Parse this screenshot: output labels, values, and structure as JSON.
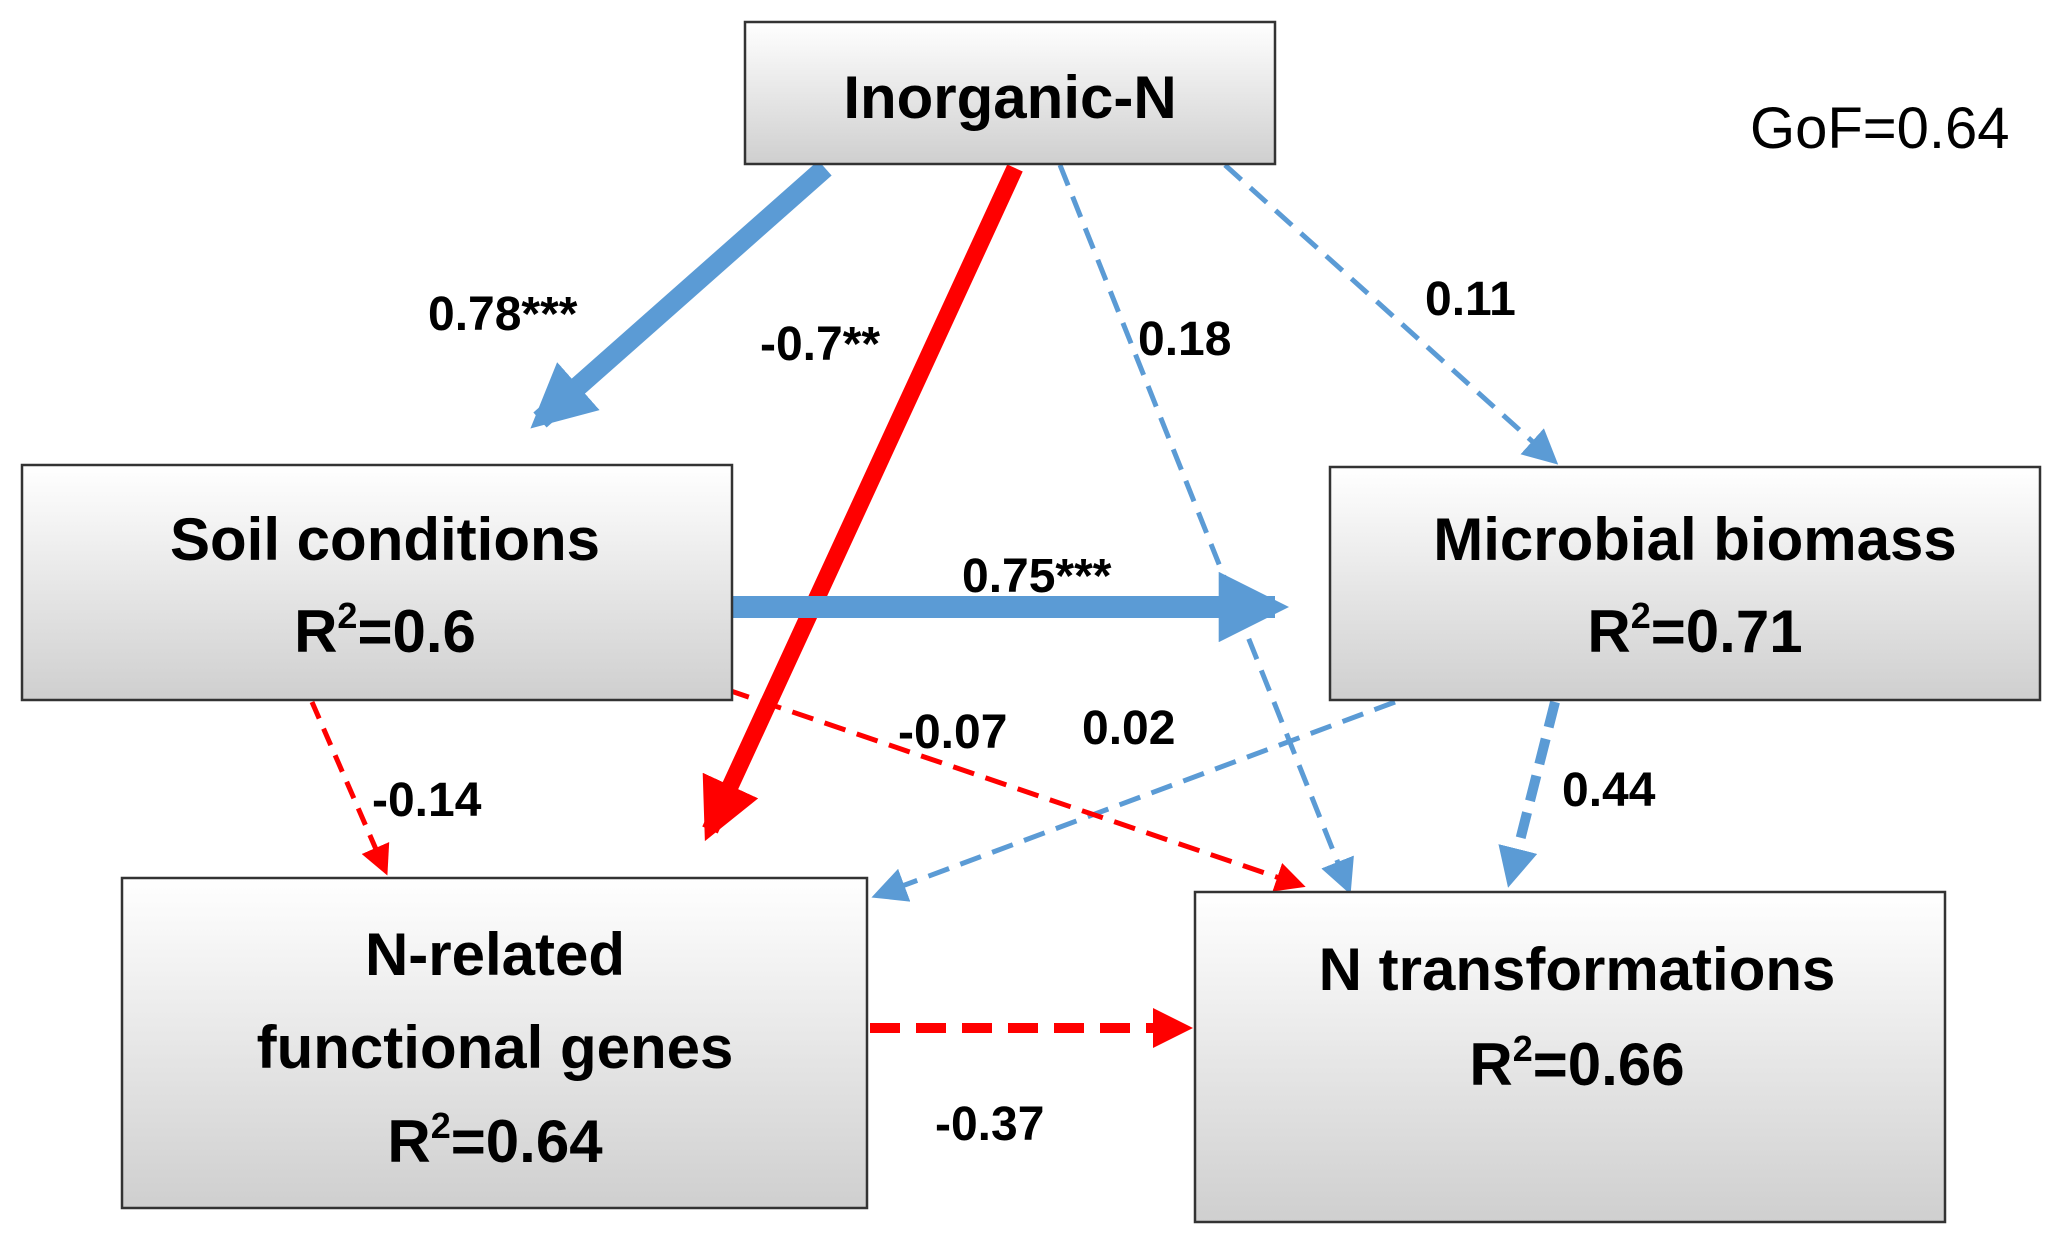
{
  "gof_label": "GoF=0.64",
  "colors": {
    "positive": "#5b9bd5",
    "negative": "#ff0000",
    "box_fill_top": "#ffffff",
    "box_fill_bottom": "#cfcfcf",
    "box_border": "#333333"
  },
  "nodes": {
    "inorganic_n": {
      "line1": "Inorganic-N"
    },
    "soil": {
      "line1": "Soil conditions",
      "r_prefix": "R",
      "r_sup": "2",
      "r_value": "=0.6"
    },
    "microbial": {
      "line1": "Microbial biomass",
      "r_prefix": "R",
      "r_sup": "2",
      "r_value": "=0.71"
    },
    "genes": {
      "line1": "N-related",
      "line2": "functional genes",
      "r_prefix": "R",
      "r_sup": "2",
      "r_value": "=0.64"
    },
    "transform": {
      "line1": "N transformations",
      "r_prefix": "R",
      "r_sup": "2",
      "r_value": "=0.66"
    }
  },
  "paths": [
    {
      "from": "Inorganic-N",
      "to": "Soil conditions",
      "coef": "0.78***",
      "sign": "positive",
      "line": "solid"
    },
    {
      "from": "Inorganic-N",
      "to": "N-related functional genes",
      "coef": "-0.7**",
      "sign": "negative",
      "line": "solid"
    },
    {
      "from": "Inorganic-N",
      "to": "N transformations",
      "coef": "0.18",
      "sign": "positive",
      "line": "dashed"
    },
    {
      "from": "Inorganic-N",
      "to": "Microbial biomass",
      "coef": "0.11",
      "sign": "positive",
      "line": "dashed"
    },
    {
      "from": "Soil conditions",
      "to": "Microbial biomass",
      "coef": "0.75***",
      "sign": "positive",
      "line": "solid"
    },
    {
      "from": "Soil conditions",
      "to": "N-related functional genes",
      "coef": "-0.14",
      "sign": "negative",
      "line": "dashed"
    },
    {
      "from": "Soil conditions",
      "to": "N transformations",
      "coef": "-0.07",
      "sign": "negative",
      "line": "dashed"
    },
    {
      "from": "Microbial biomass",
      "to": "N-related functional genes",
      "coef": "0.02",
      "sign": "positive",
      "line": "dashed"
    },
    {
      "from": "Microbial biomass",
      "to": "N transformations",
      "coef": "0.44",
      "sign": "positive",
      "line": "dashed"
    },
    {
      "from": "N-related functional genes",
      "to": "N transformations",
      "coef": "-0.37",
      "sign": "negative",
      "line": "dashed"
    }
  ]
}
